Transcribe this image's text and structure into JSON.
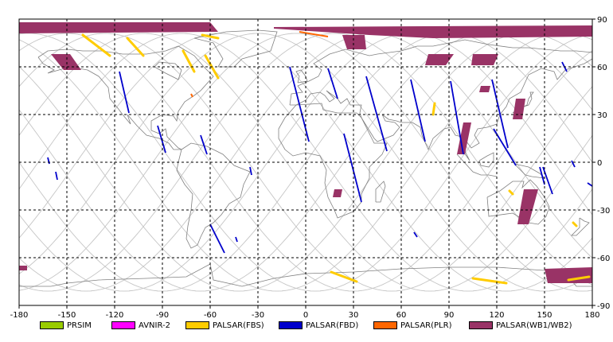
{
  "map": {
    "x_ticks": [
      "-180",
      "-150",
      "-120",
      "-90",
      "-60",
      "-30",
      "0",
      "30",
      "60",
      "90",
      "120",
      "150",
      "180"
    ],
    "y_ticks": [
      "90",
      "60",
      "30",
      "0",
      "-30",
      "-60",
      "-90"
    ],
    "lon_range": [
      -180,
      180
    ],
    "lat_range": [
      -90,
      90
    ],
    "grid": true
  },
  "legend": [
    {
      "label": "PRSIM",
      "color": "#99cc00"
    },
    {
      "label": "AVNIR-2",
      "color": "#ff00ff"
    },
    {
      "label": "PALSAR(FBS)",
      "color": "#ffcc00"
    },
    {
      "label": "PALSAR(FBD)",
      "color": "#0000cc"
    },
    {
      "label": "PALSAR(PLR)",
      "color": "#ff6600"
    },
    {
      "label": "PALSAR(WB1/WB2)",
      "color": "#993366"
    }
  ],
  "colors": {
    "orbit": "#c8c8c8",
    "coast": "#808080",
    "fbs": "#ffcc00",
    "fbd": "#0000cc",
    "plr": "#ff6600",
    "wb": "#993366"
  }
}
